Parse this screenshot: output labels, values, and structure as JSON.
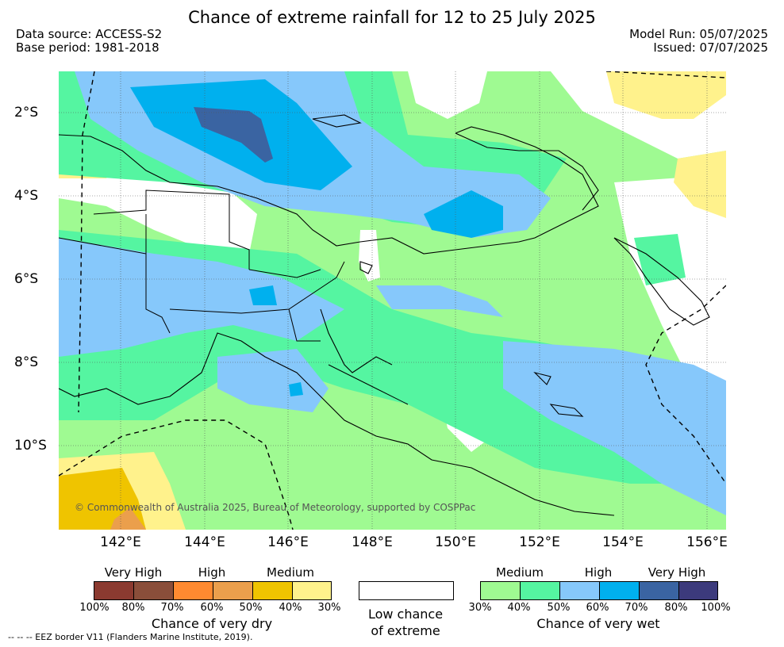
{
  "title": "Chance of extreme rainfall for 12 to 25 July 2025",
  "data_source": "Data source: ACCESS-S2",
  "base_period": "Base period: 1981-2018",
  "model_run": "Model Run: 05/07/2025",
  "issued": "Issued: 07/07/2025",
  "lat_ticks": [
    "2°S",
    "4°S",
    "6°S",
    "8°S",
    "10°S"
  ],
  "lon_ticks": [
    "142°E",
    "144°E",
    "146°E",
    "148°E",
    "150°E",
    "152°E",
    "154°E",
    "156°E"
  ],
  "copyright": "© Commonwealth of Australia 2025, Bureau of Meteorology, supported by COSPPac",
  "dry_legend": {
    "levels": [
      "Very High",
      "High",
      "Medium"
    ],
    "colors": [
      "#8b3a30",
      "#8a4e3a",
      "#ff8a30",
      "#eb9f4c",
      "#efc400",
      "#fff28c"
    ],
    "percents": [
      "100%",
      "80%",
      "70%",
      "60%",
      "50%",
      "40%",
      "30%"
    ],
    "caption": "Chance of very dry"
  },
  "low_legend": {
    "caption_line1": "Low chance",
    "caption_line2": "of extreme",
    "color": "#ffffff"
  },
  "wet_legend": {
    "levels": [
      "Medium",
      "High",
      "Very High"
    ],
    "colors": [
      "#9ffa92",
      "#55f5a1",
      "#86c8fb",
      "#00b0ee",
      "#3a64a2",
      "#3c3a7c"
    ],
    "percents": [
      "30%",
      "40%",
      "50%",
      "60%",
      "70%",
      "80%",
      "100%"
    ],
    "caption": "Chance of very wet"
  },
  "eez_note": "--  --  -- EEZ border V11 (Flanders Marine Institute, 2019)."
}
